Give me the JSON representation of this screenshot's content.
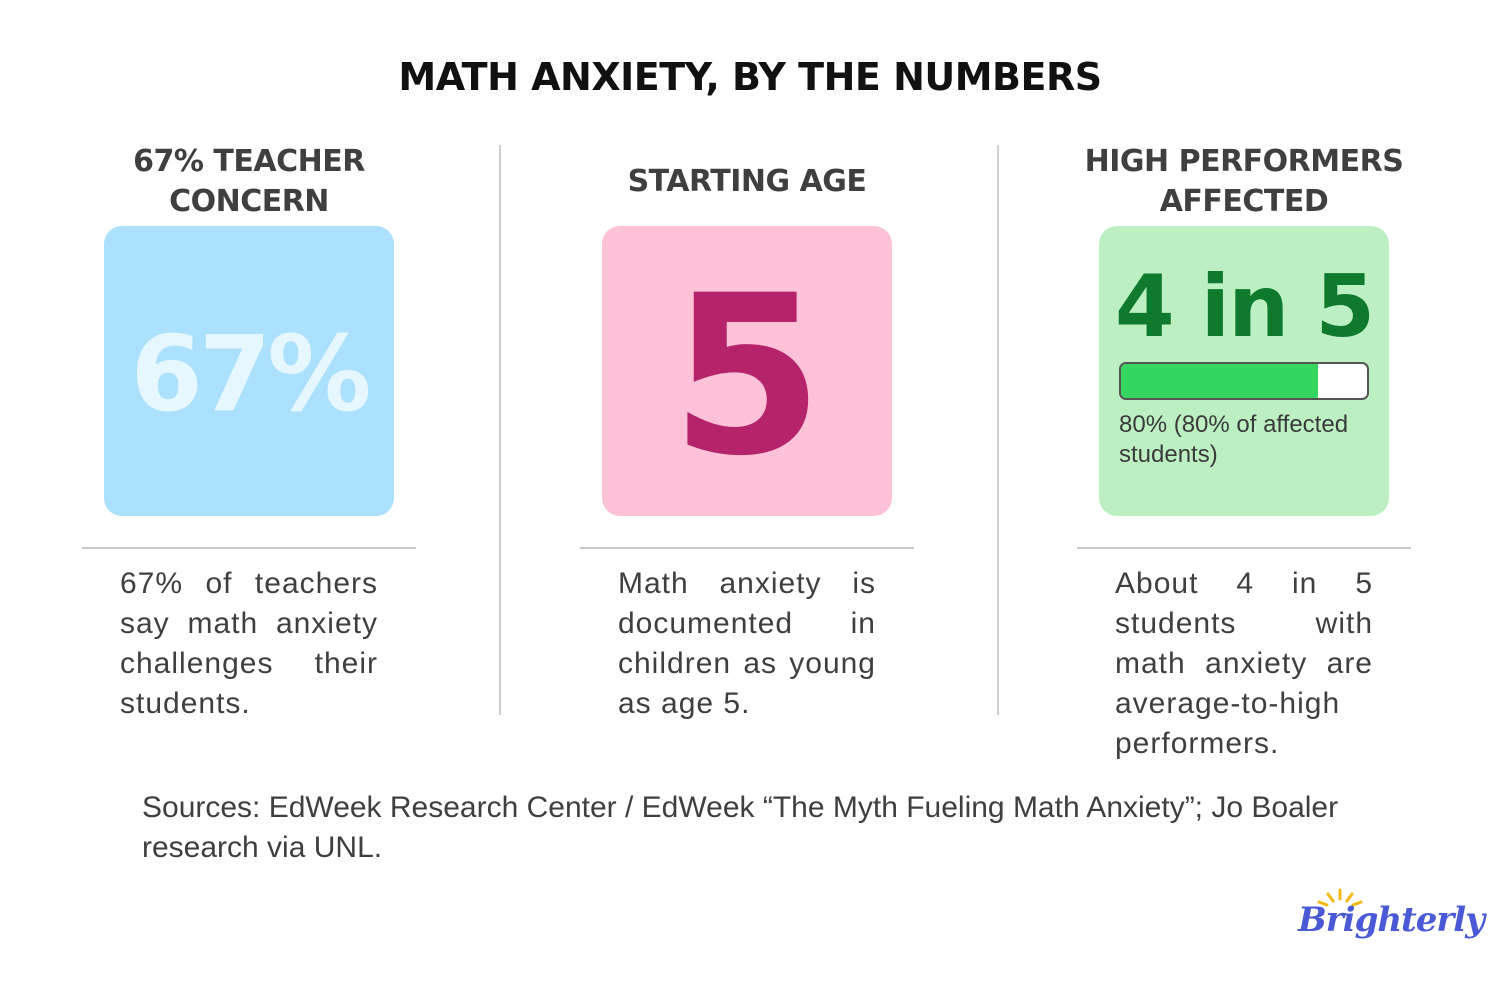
{
  "title": "MATH ANXIETY, BY THE NUMBERS",
  "columns": [
    {
      "heading": "67% TEACHER CONCERN",
      "big_value": "67%",
      "card_color": "#abe1fd",
      "value_color": "#e6f7ff",
      "description": "67% of teachers say math anxiety challenges their students."
    },
    {
      "heading": "STARTING AGE",
      "big_value": "5",
      "card_color": "#fec2d8",
      "value_color": "#b5236b",
      "description": "Math anxiety is documented in children as young as age 5."
    },
    {
      "heading": "HIGH PERFORMERS AFFECTED",
      "big_value": "4 in 5",
      "card_color": "#bcf0c3",
      "value_color": "#0e7a2e",
      "progress_fraction": 0.8,
      "progress_color": "#35d65f",
      "progress_caption": "80% (80% of affected students)",
      "description": "About 4 in 5 students with math anxiety are average-to-high performers."
    }
  ],
  "sources": "Sources: EdWeek Research Center / EdWeek “The Myth Fueling Math Anxiety”; Jo Boaler research via UNL.",
  "logo": {
    "text": "Brighterly",
    "icon": "sun-rays-icon",
    "color": "#4a59d6",
    "accent": "#f5b915"
  }
}
